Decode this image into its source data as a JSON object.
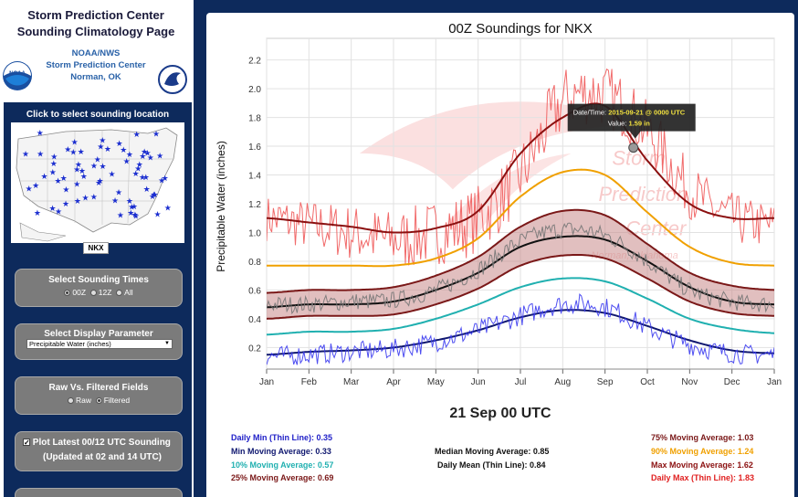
{
  "sidebar": {
    "title_line1": "Storm Prediction Center",
    "title_line2": "Sounding Climatology Page",
    "org_line1": "NOAA/NWS",
    "org_line2": "Storm Prediction Center",
    "org_line3": "Norman, OK",
    "noaa_logo_text": "NOAA",
    "map_title": "Click to select sounding location",
    "selected_station": "NKX",
    "times_panel": {
      "title": "Select Sounding Times",
      "options": [
        "00Z",
        "12Z",
        "All"
      ],
      "selected": "00Z"
    },
    "display_panel": {
      "title": "Select Display Parameter",
      "selected_value": "Precipitable Water (inches)"
    },
    "raw_panel": {
      "title": "Raw Vs. Filtered Fields",
      "options": [
        "Raw",
        "Filtered"
      ],
      "selected": "Filtered"
    },
    "latest_panel": {
      "label": "Plot Latest 00/12 UTC Sounding",
      "sublabel": "(Updated at 02 and 14 UTC)",
      "checked": true
    }
  },
  "chart_data": {
    "type": "line",
    "title": "00Z Soundings for NKX",
    "ylabel": "Precipitable Water (inches)",
    "xlabel": "",
    "ylim": [
      0.05,
      2.35
    ],
    "yticks": [
      0.2,
      0.4,
      0.6,
      0.8,
      1.0,
      1.2,
      1.4,
      1.6,
      1.8,
      2.0,
      2.2
    ],
    "x_tick_labels": [
      "Jan",
      "Feb",
      "Mar",
      "Apr",
      "May",
      "Jun",
      "Jul",
      "Aug",
      "Sep",
      "Oct",
      "Nov",
      "Dec",
      "Jan"
    ],
    "grid": true,
    "watermark": [
      "Storm",
      "Prediction",
      "Center",
      "Norman, Oklahoma"
    ],
    "series": [
      {
        "name": "Daily Max (Thin Line)",
        "color": "#f05a5a",
        "style": "thin-noisy",
        "values": [
          1.1,
          1.05,
          1.0,
          0.95,
          1.0,
          1.1,
          1.4,
          1.9,
          1.95,
          1.7,
          1.3,
          1.1,
          1.05
        ]
      },
      {
        "name": "Max Moving Average",
        "color": "#8b1010",
        "values": [
          1.1,
          1.07,
          1.04,
          1.0,
          1.03,
          1.15,
          1.55,
          1.8,
          1.88,
          1.5,
          1.2,
          1.1,
          1.1
        ]
      },
      {
        "name": "90% Moving Average",
        "color": "#f0a000",
        "values": [
          0.77,
          0.77,
          0.77,
          0.77,
          0.82,
          0.96,
          1.25,
          1.42,
          1.4,
          1.14,
          0.9,
          0.79,
          0.77
        ]
      },
      {
        "name": "75% Moving Average",
        "color": "#7a1818",
        "values": [
          0.58,
          0.6,
          0.6,
          0.62,
          0.7,
          0.83,
          1.04,
          1.15,
          1.12,
          0.92,
          0.72,
          0.63,
          0.6
        ]
      },
      {
        "name": "Median Moving Average",
        "color": "#111111",
        "values": [
          0.48,
          0.5,
          0.5,
          0.52,
          0.6,
          0.72,
          0.9,
          0.97,
          0.95,
          0.8,
          0.62,
          0.52,
          0.5
        ]
      },
      {
        "name": "Daily Mean (Thin Line)",
        "color": "#777777",
        "style": "thin-noisy",
        "values": [
          0.5,
          0.5,
          0.52,
          0.53,
          0.6,
          0.74,
          0.94,
          1.02,
          0.98,
          0.8,
          0.6,
          0.52,
          0.5
        ]
      },
      {
        "name": "25% Moving Average",
        "color": "#7a1818",
        "values": [
          0.4,
          0.42,
          0.42,
          0.43,
          0.5,
          0.61,
          0.77,
          0.84,
          0.82,
          0.68,
          0.52,
          0.44,
          0.42
        ]
      },
      {
        "name": "10% Moving Average",
        "color": "#20b0b0",
        "values": [
          0.29,
          0.31,
          0.31,
          0.33,
          0.4,
          0.5,
          0.62,
          0.68,
          0.66,
          0.54,
          0.4,
          0.33,
          0.3
        ]
      },
      {
        "name": "Min Moving Average",
        "color": "#101870",
        "values": [
          0.15,
          0.17,
          0.18,
          0.2,
          0.25,
          0.32,
          0.41,
          0.46,
          0.44,
          0.35,
          0.25,
          0.18,
          0.16
        ]
      },
      {
        "name": "Daily Min (Thin Line)",
        "color": "#3b3bf0",
        "style": "thin-noisy",
        "values": [
          0.14,
          0.15,
          0.17,
          0.19,
          0.24,
          0.32,
          0.42,
          0.5,
          0.48,
          0.34,
          0.22,
          0.16,
          0.15
        ]
      }
    ],
    "tooltip": {
      "date_label": "Date/Time:",
      "date_value": "2015-09-21 @ 0000 UTC",
      "value_label": "Value:",
      "value_value": "1.59 in"
    },
    "selected_point": {
      "month_pos": 8.67,
      "value": 1.59
    }
  },
  "date_display": "21 Sep 00 UTC",
  "stats": {
    "daily_min": "Daily Min (Thin Line): 0.35",
    "min_ma": "Min Moving Average: 0.33",
    "p10": "10% Moving Average: 0.57",
    "p25": "25% Moving Average: 0.69",
    "median": "Median Moving Average: 0.85",
    "daily_mean": "Daily Mean (Thin Line): 0.84",
    "p75": "75% Moving Average: 1.03",
    "p90": "90% Moving Average: 1.24",
    "max_ma": "Max Moving Average: 1.62",
    "daily_max": "Daily Max (Thin Line): 1.83"
  },
  "colors": {
    "navy": "#0d2a5c",
    "daily_min": "#2020c8",
    "min_ma": "#101870",
    "p10": "#20b0b0",
    "p25": "#7a1818",
    "median": "#111111",
    "p75": "#7a1818",
    "p90": "#f0a000",
    "max_ma": "#8b1010",
    "daily_max": "#e02020"
  }
}
